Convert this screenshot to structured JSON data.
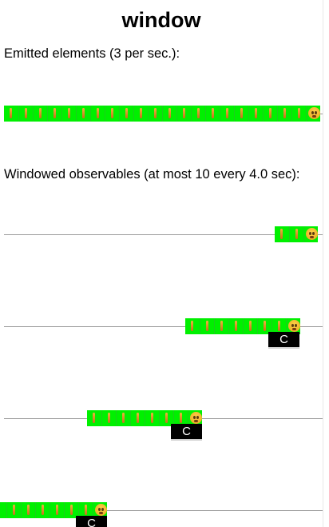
{
  "title": "window",
  "emitted": {
    "label": "Emitted elements (3 per sec.):",
    "cells": [
      "tick",
      "tick",
      "tick",
      "tick",
      "tick",
      "tick",
      "tick",
      "tick",
      "tick",
      "tick",
      "tick",
      "tick",
      "tick",
      "tick",
      "tick",
      "tick",
      "tick",
      "tick",
      "tick",
      "tick",
      "tick",
      "face"
    ]
  },
  "windowed": {
    "label": "Windowed observables (at most 10 every 4.0 sec):",
    "rows": [
      {
        "cells": [
          "tick",
          "tick",
          "face"
        ],
        "completed": false
      },
      {
        "cells": [
          "tick",
          "tick",
          "tick",
          "tick",
          "tick",
          "tick",
          "tick",
          "face"
        ],
        "completed": true,
        "complete_label": "C"
      },
      {
        "cells": [
          "tick",
          "tick",
          "tick",
          "tick",
          "tick",
          "tick",
          "tick",
          "face"
        ],
        "completed": true,
        "complete_label": "C"
      },
      {
        "cells": [
          "tick",
          "tick",
          "tick",
          "tick",
          "tick",
          "tick",
          "tick",
          "face"
        ],
        "completed": true,
        "complete_label": "C"
      }
    ]
  },
  "colors": {
    "element_fill": "#00f000",
    "axis": "#9a9a9a",
    "complete_badge": "#000000"
  },
  "icons": {
    "tick": "orange-bar-icon",
    "face": "face-emoji-icon"
  }
}
